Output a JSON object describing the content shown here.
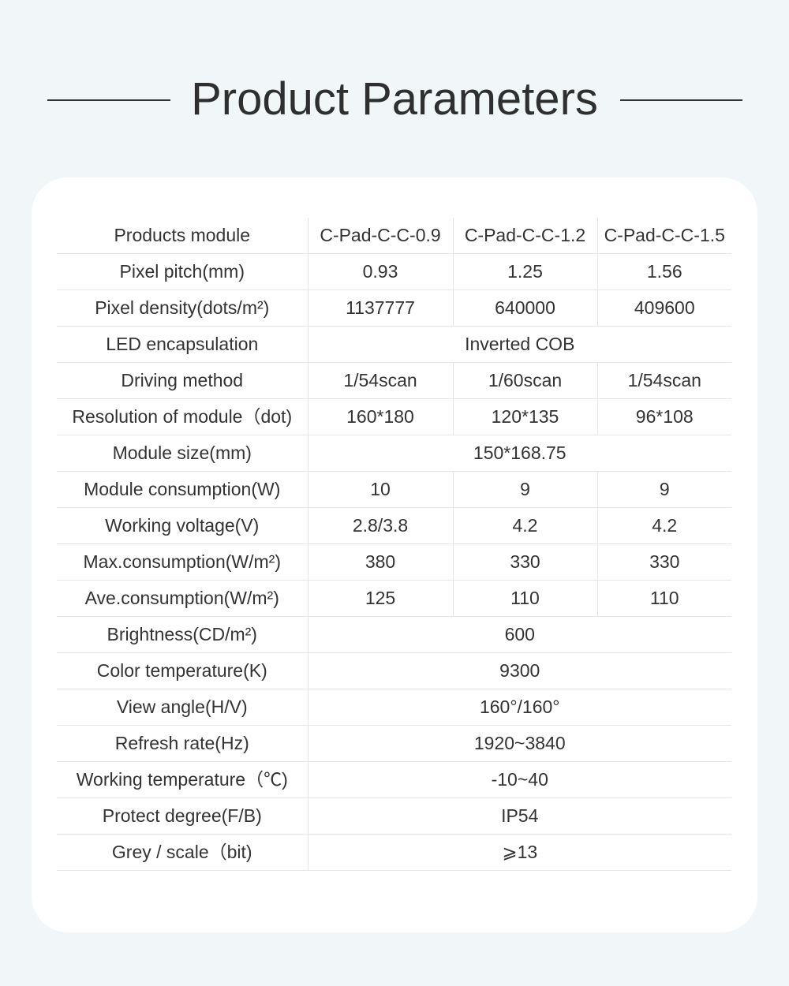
{
  "header": {
    "title": "Product Parameters"
  },
  "table": {
    "rows": [
      {
        "label": "Products module",
        "values": [
          "C-Pad-C-C-0.9",
          "C-Pad-C-C-1.2",
          "C-Pad-C-C-1.5"
        ]
      },
      {
        "label": "Pixel pitch(mm)",
        "values": [
          "0.93",
          "1.25",
          "1.56"
        ]
      },
      {
        "label": "Pixel density(dots/m²)",
        "values": [
          "1137777",
          "640000",
          "409600"
        ]
      },
      {
        "label": "LED encapsulation",
        "values": [
          "Inverted COB"
        ]
      },
      {
        "label": "Driving method",
        "values": [
          "1/54scan",
          "1/60scan",
          "1/54scan"
        ]
      },
      {
        "label": "Resolution of module（dot)",
        "values": [
          "160*180",
          "120*135",
          "96*108"
        ]
      },
      {
        "label": "Module size(mm)",
        "values": [
          "150*168.75"
        ]
      },
      {
        "label": "Module consumption(W)",
        "values": [
          "10",
          "9",
          "9"
        ]
      },
      {
        "label": "Working voltage(V)",
        "values": [
          "2.8/3.8",
          "4.2",
          "4.2"
        ]
      },
      {
        "label": "Max.consumption(W/m²)",
        "values": [
          "380",
          "330",
          "330"
        ]
      },
      {
        "label": "Ave.consumption(W/m²)",
        "values": [
          "125",
          "110",
          "110"
        ]
      },
      {
        "label": "Brightness(CD/m²)",
        "values": [
          "600"
        ]
      },
      {
        "label": "Color temperature(K)",
        "values": [
          "9300"
        ]
      },
      {
        "label": "View angle(H/V)",
        "values": [
          "160°/160°"
        ]
      },
      {
        "label": "Refresh rate(Hz)",
        "values": [
          "1920~3840"
        ]
      },
      {
        "label": "Working temperature（℃)",
        "values": [
          "-10~40"
        ]
      },
      {
        "label": "Protect degree(F/B)",
        "values": [
          "IP54"
        ]
      },
      {
        "label": "Grey / scale（bit)",
        "values": [
          "⩾13"
        ]
      }
    ]
  }
}
